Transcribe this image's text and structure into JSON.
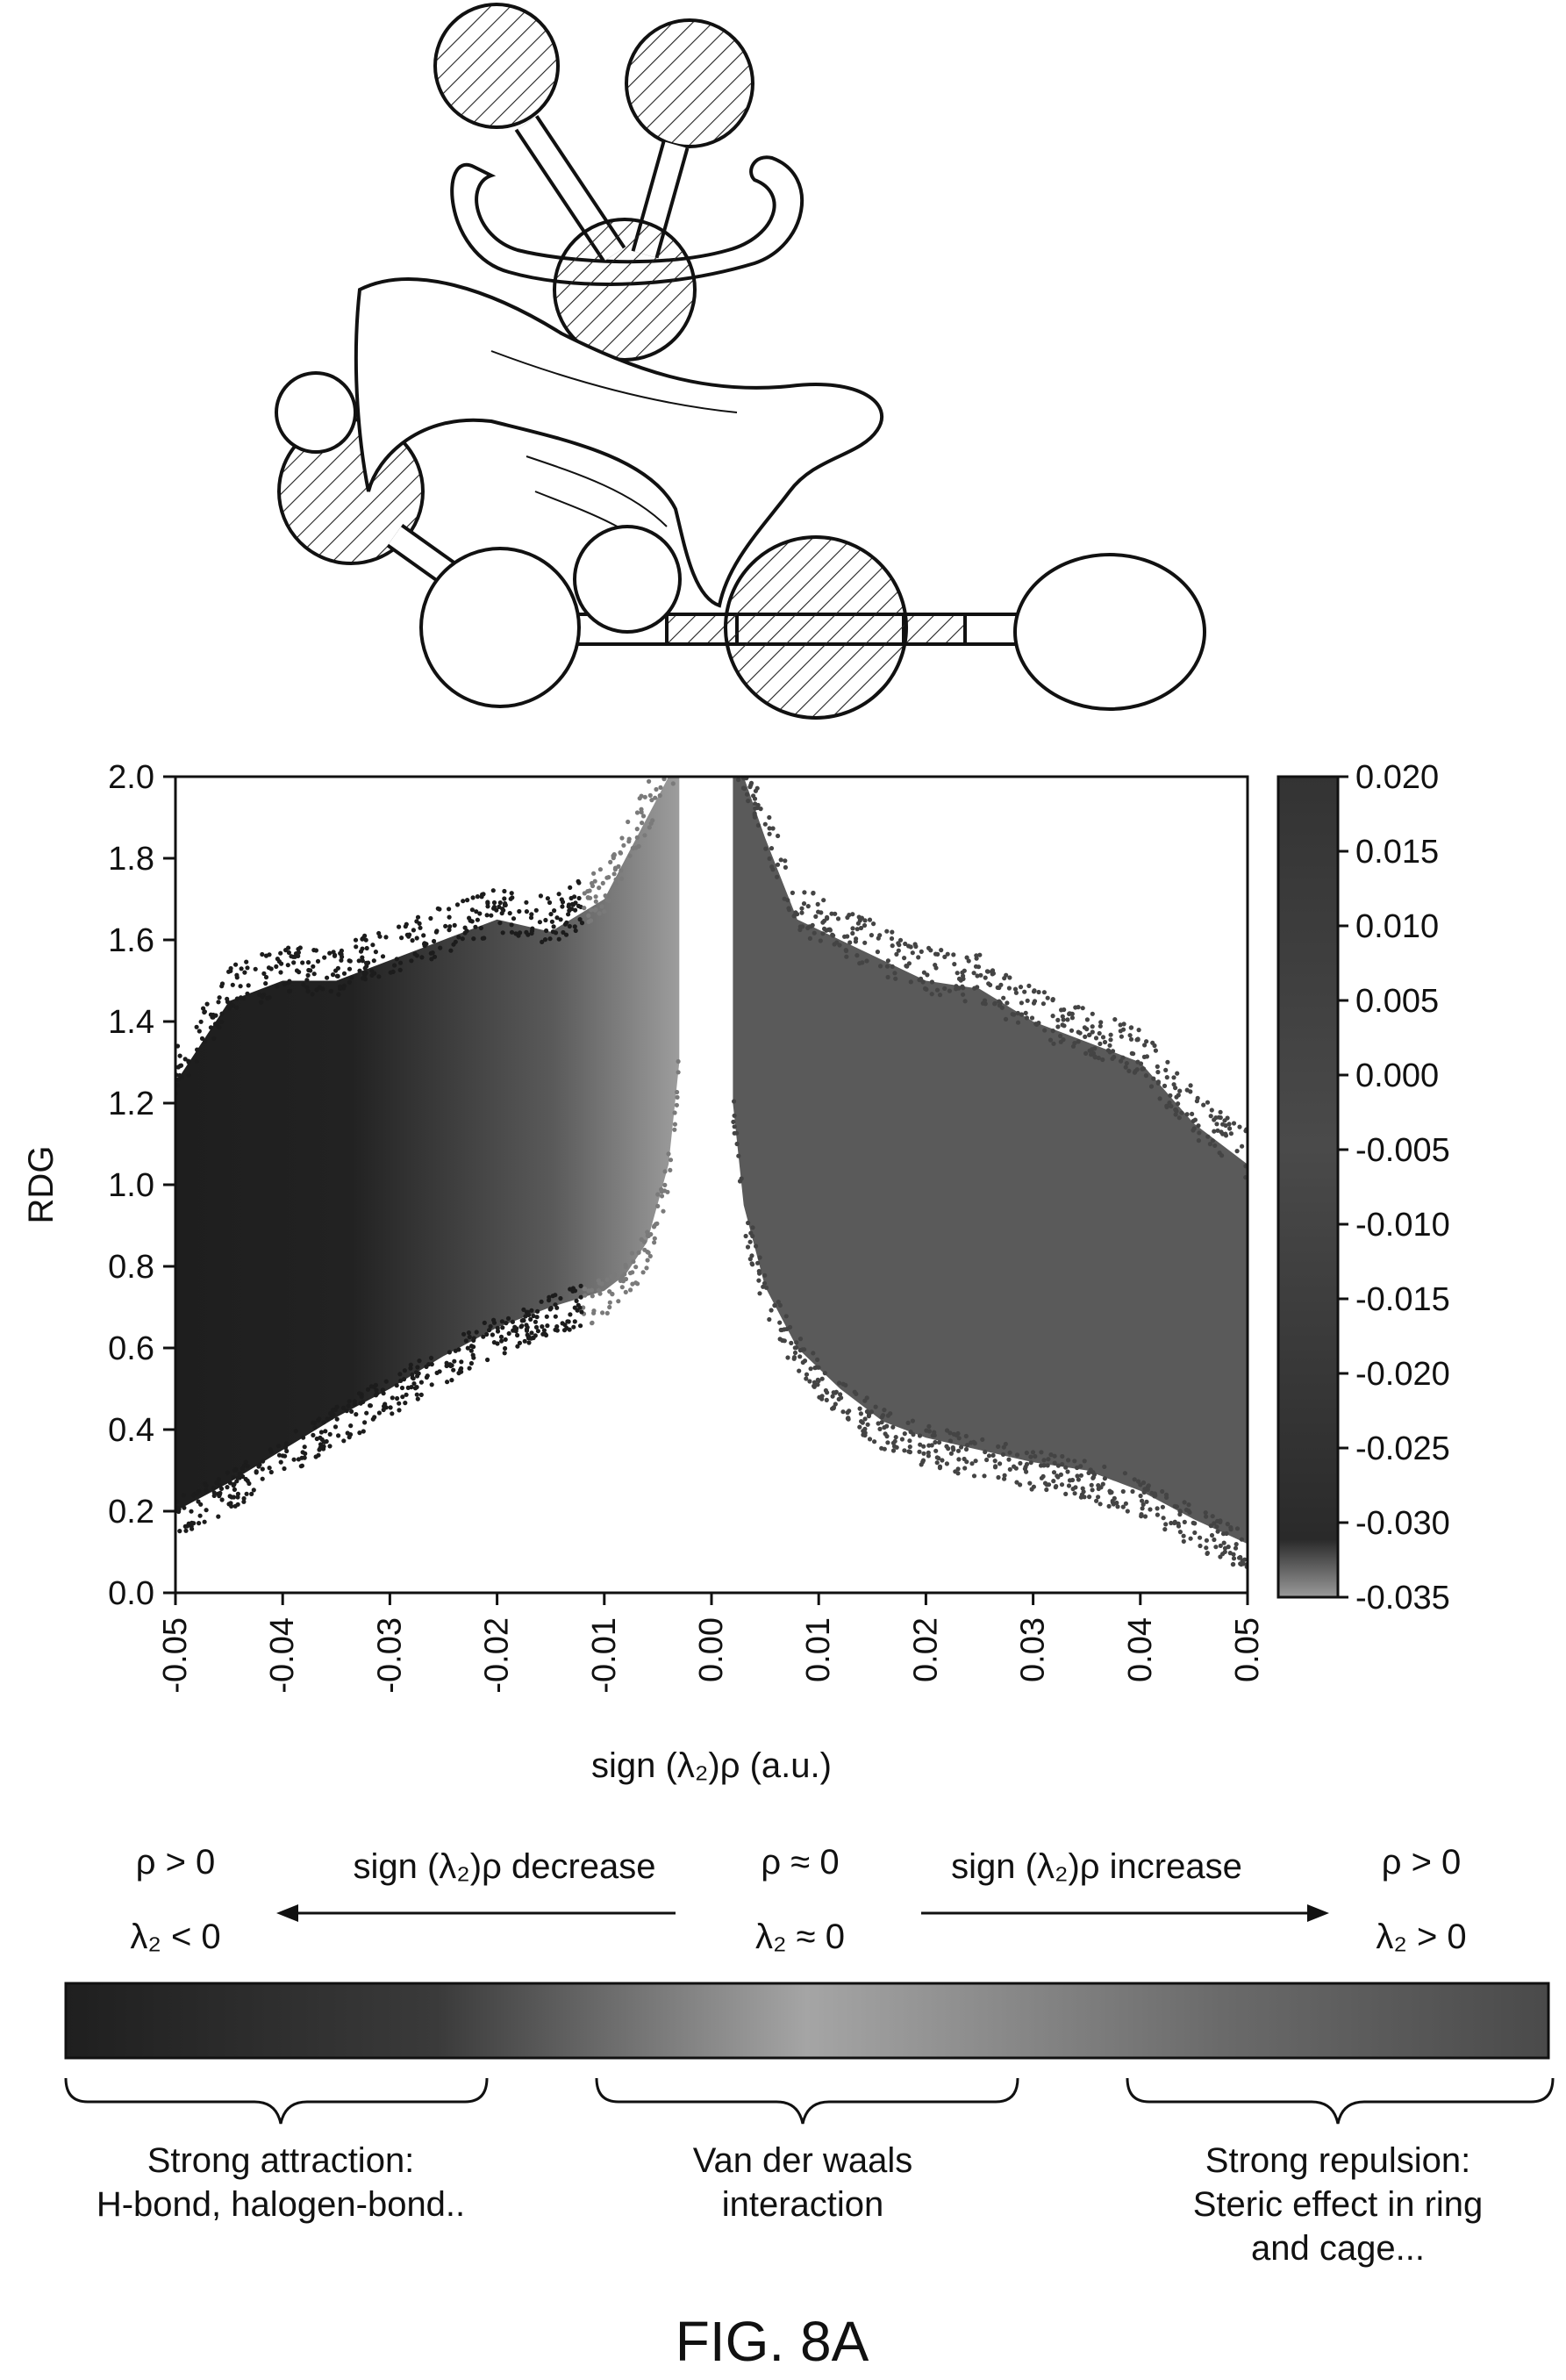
{
  "chart_data": {
    "type": "scatter",
    "title": "",
    "xlabel": "sign (λ₂)ρ (a.u.)",
    "ylabel": "RDG",
    "xlim": [
      -0.05,
      0.05
    ],
    "ylim": [
      0.0,
      2.0
    ],
    "xticks": [
      "-0.05",
      "-0.04",
      "-0.03",
      "-0.02",
      "-0.01",
      "0.00",
      "0.01",
      "0.02",
      "0.03",
      "0.04",
      "0.05"
    ],
    "yticks": [
      "0.0",
      "0.2",
      "0.4",
      "0.6",
      "0.8",
      "1.0",
      "1.2",
      "1.4",
      "1.6",
      "1.8",
      "2.0"
    ],
    "grid": false,
    "colorbar": {
      "ticks": [
        "0.020",
        "0.015",
        "0.010",
        "0.005",
        "0.000",
        "-0.005",
        "-0.010",
        "-0.015",
        "-0.020",
        "-0.025",
        "-0.030",
        "-0.035"
      ],
      "range": [
        -0.035,
        0.02
      ]
    },
    "series": [
      {
        "region": "negative-branch",
        "envelope_x": [
          -0.05,
          -0.045,
          -0.04,
          -0.035,
          -0.03,
          -0.025,
          -0.02,
          -0.015,
          -0.01,
          -0.008,
          -0.006,
          -0.004,
          -0.003
        ],
        "upper_rdg": [
          1.25,
          1.45,
          1.5,
          1.5,
          1.55,
          1.6,
          1.65,
          1.62,
          1.7,
          1.8,
          1.9,
          2.0,
          2.0
        ],
        "lower_rdg": [
          0.2,
          0.27,
          0.35,
          0.43,
          0.5,
          0.58,
          0.65,
          0.7,
          0.74,
          0.78,
          0.86,
          1.05,
          1.3
        ]
      },
      {
        "region": "positive-branch",
        "envelope_x": [
          0.002,
          0.003,
          0.005,
          0.008,
          0.012,
          0.016,
          0.02,
          0.025,
          0.03,
          0.035,
          0.04,
          0.045,
          0.05
        ],
        "upper_rdg": [
          2.0,
          2.0,
          1.85,
          1.65,
          1.6,
          1.55,
          1.5,
          1.48,
          1.4,
          1.35,
          1.3,
          1.15,
          1.05
        ],
        "lower_rdg": [
          1.2,
          0.95,
          0.75,
          0.6,
          0.5,
          0.42,
          0.38,
          0.35,
          0.32,
          0.3,
          0.25,
          0.18,
          0.12
        ]
      }
    ]
  },
  "legend_bar": {
    "left_rho": "ρ > 0",
    "left_lambda": "λ₂ < 0",
    "left_arrow": "sign (λ₂)ρ decrease",
    "center_rho": "ρ ≈ 0",
    "center_lambda": "λ₂ ≈ 0",
    "right_arrow": "sign (λ₂)ρ increase",
    "right_rho": "ρ > 0",
    "right_lambda": "λ₂ > 0",
    "left_label": [
      "Strong attraction:",
      "H-bond, halogen-bond.."
    ],
    "center_label": [
      "Van der waals",
      "interaction"
    ],
    "right_label": [
      "Strong repulsion:",
      "Steric effect in ring",
      "and cage..."
    ]
  },
  "figure_caption": "FIG. 8A",
  "colors": {
    "dark": "#1c1c1c",
    "mid": "#9a9a9a",
    "positive": "#5a5a5a"
  },
  "molecule": {
    "icon": "molecule-isosurface-illustration"
  }
}
